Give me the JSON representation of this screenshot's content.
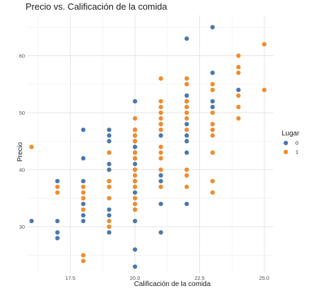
{
  "chart_data": {
    "type": "scatter",
    "title": "Precio vs. Calificación de la comida",
    "xlabel": "Calificación de la comida",
    "ylabel": "Precio",
    "xlim": [
      15.85,
      25.35
    ],
    "ylim": [
      21.9,
      67.1
    ],
    "x_ticks": [
      17.5,
      20.0,
      22.5,
      25.0
    ],
    "x_tick_labels": [
      "17.5",
      "20.0",
      "22.5",
      "25.0"
    ],
    "y_ticks": [
      30,
      40,
      50,
      60
    ],
    "y_tick_labels": [
      "30",
      "40",
      "50",
      "60"
    ],
    "grid": true,
    "legend": {
      "title": "Lugar",
      "position": "right"
    },
    "series": [
      {
        "name": "0",
        "color": "#4a78ad",
        "points": [
          [
            16,
            31
          ],
          [
            17,
            38
          ],
          [
            17,
            31
          ],
          [
            17,
            29
          ],
          [
            17,
            28
          ],
          [
            18,
            47
          ],
          [
            18,
            42
          ],
          [
            18,
            38
          ],
          [
            18,
            34
          ],
          [
            18,
            32
          ],
          [
            18,
            31
          ],
          [
            19,
            47
          ],
          [
            19,
            46
          ],
          [
            19,
            45
          ],
          [
            19,
            41
          ],
          [
            19,
            40
          ],
          [
            19,
            38
          ],
          [
            19,
            33
          ],
          [
            19,
            32
          ],
          [
            19,
            29
          ],
          [
            20,
            52
          ],
          [
            20,
            47
          ],
          [
            20,
            46
          ],
          [
            20,
            45
          ],
          [
            20,
            44
          ],
          [
            20,
            43
          ],
          [
            20,
            42
          ],
          [
            20,
            41
          ],
          [
            20,
            40
          ],
          [
            20,
            38
          ],
          [
            20,
            36
          ],
          [
            20,
            33
          ],
          [
            20,
            31
          ],
          [
            20,
            26
          ],
          [
            20,
            23
          ],
          [
            21,
            48
          ],
          [
            21,
            46
          ],
          [
            21,
            39
          ],
          [
            21,
            38
          ],
          [
            21,
            34
          ],
          [
            21,
            29
          ],
          [
            22,
            63
          ],
          [
            22,
            53
          ],
          [
            22,
            52
          ],
          [
            22,
            51
          ],
          [
            22,
            48
          ],
          [
            22,
            46
          ],
          [
            22,
            45
          ],
          [
            22,
            43
          ],
          [
            22,
            34
          ],
          [
            23,
            65
          ],
          [
            23,
            57
          ],
          [
            23,
            52
          ],
          [
            23,
            51
          ],
          [
            24,
            54
          ]
        ]
      },
      {
        "name": "1",
        "color": "#f08c2c",
        "points": [
          [
            16,
            44
          ],
          [
            17,
            37
          ],
          [
            17,
            36
          ],
          [
            18,
            37
          ],
          [
            18,
            36
          ],
          [
            18,
            35
          ],
          [
            18,
            33
          ],
          [
            18,
            25
          ],
          [
            18,
            24
          ],
          [
            19,
            43
          ],
          [
            19,
            38
          ],
          [
            19,
            37
          ],
          [
            19,
            35
          ],
          [
            19,
            31
          ],
          [
            19,
            30
          ],
          [
            20,
            49
          ],
          [
            20,
            47
          ],
          [
            20,
            46
          ],
          [
            20,
            45
          ],
          [
            20,
            43
          ],
          [
            20,
            42
          ],
          [
            20,
            40
          ],
          [
            20,
            39
          ],
          [
            20,
            38
          ],
          [
            20,
            37
          ],
          [
            20,
            35
          ],
          [
            20,
            34
          ],
          [
            20,
            33
          ],
          [
            21,
            56
          ],
          [
            21,
            52
          ],
          [
            21,
            51
          ],
          [
            21,
            50
          ],
          [
            21,
            49
          ],
          [
            21,
            48
          ],
          [
            21,
            47
          ],
          [
            21,
            44
          ],
          [
            21,
            43
          ],
          [
            21,
            42
          ],
          [
            21,
            40
          ],
          [
            21,
            37
          ],
          [
            22,
            56
          ],
          [
            22,
            55
          ],
          [
            22,
            52
          ],
          [
            22,
            51
          ],
          [
            22,
            50
          ],
          [
            22,
            49
          ],
          [
            22,
            47
          ],
          [
            22,
            40
          ],
          [
            22,
            39
          ],
          [
            22,
            37
          ],
          [
            23,
            55
          ],
          [
            23,
            54
          ],
          [
            23,
            50
          ],
          [
            23,
            48
          ],
          [
            23,
            47
          ],
          [
            23,
            46
          ],
          [
            23,
            43
          ],
          [
            23,
            38
          ],
          [
            23,
            36
          ],
          [
            24,
            60
          ],
          [
            24,
            58
          ],
          [
            24,
            57
          ],
          [
            24,
            53
          ],
          [
            24,
            51
          ],
          [
            24,
            49
          ],
          [
            25,
            62
          ],
          [
            25,
            54
          ]
        ]
      }
    ]
  }
}
